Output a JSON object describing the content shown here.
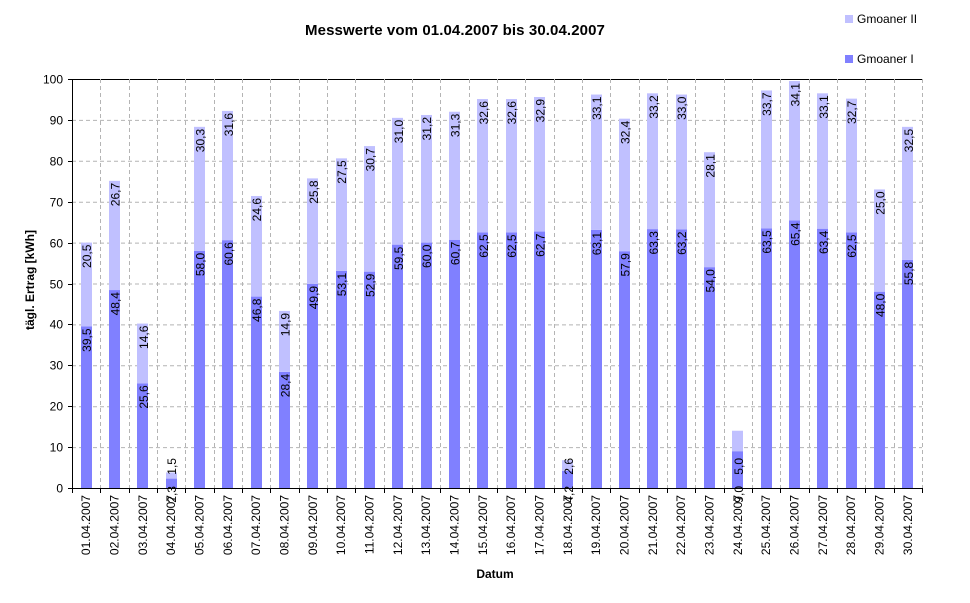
{
  "chart_data": {
    "type": "bar",
    "stacked": true,
    "title": "Messwerte vom 01.04.2007 bis 30.04.2007",
    "xlabel": "Datum",
    "ylabel": "tägl. Ertrag [kWh]",
    "ylim": [
      0,
      100
    ],
    "yticks": [
      0,
      10,
      20,
      30,
      40,
      50,
      60,
      70,
      80,
      90,
      100
    ],
    "grid": true,
    "legend_position": "top-right",
    "categories": [
      "01.04.2007",
      "02.04.2007",
      "03.04.2007",
      "04.04.2007",
      "05.04.2007",
      "06.04.2007",
      "07.04.2007",
      "08.04.2007",
      "09.04.2007",
      "10.04.2007",
      "11.04.2007",
      "12.04.2007",
      "13.04.2007",
      "14.04.2007",
      "15.04.2007",
      "16.04.2007",
      "17.04.2007",
      "18.04.2007",
      "19.04.2007",
      "20.04.2007",
      "21.04.2007",
      "22.04.2007",
      "23.04.2007",
      "24.04.2007",
      "25.04.2007",
      "26.04.2007",
      "27.04.2007",
      "28.04.2007",
      "29.04.2007",
      "30.04.2007"
    ],
    "series": [
      {
        "name": "Gmoaner I",
        "color": "#8080ff",
        "values": [
          39.5,
          48.4,
          25.6,
          2.3,
          58.0,
          60.6,
          46.8,
          28.4,
          49.9,
          53.1,
          52.9,
          59.5,
          60.0,
          60.7,
          62.5,
          62.5,
          62.7,
          4.2,
          63.1,
          57.9,
          63.3,
          63.2,
          54.0,
          9.0,
          63.5,
          65.4,
          63.4,
          62.5,
          48.0,
          55.8
        ],
        "labels": [
          "39,5",
          "48,4",
          "25,6",
          "2,3",
          "58,0",
          "60,6",
          "46,8",
          "28,4",
          "49,9",
          "53,1",
          "52,9",
          "59,5",
          "60,0",
          "60,7",
          "62,5",
          "62,5",
          "62,7",
          "4,2",
          "63,1",
          "57,9",
          "63,3",
          "63,2",
          "54,0",
          "9,0",
          "63,5",
          "65,4",
          "63,4",
          "62,5",
          "48,0",
          "55,8"
        ]
      },
      {
        "name": "Gmoaner II",
        "color": "#c0c0ff",
        "values": [
          20.5,
          26.7,
          14.6,
          1.5,
          30.3,
          31.6,
          24.6,
          14.9,
          25.8,
          27.5,
          30.7,
          31.0,
          31.2,
          31.3,
          32.6,
          32.6,
          32.9,
          2.6,
          33.1,
          32.4,
          33.2,
          33.0,
          28.1,
          5.0,
          33.7,
          34.1,
          33.1,
          32.7,
          25.0,
          32.5
        ],
        "labels": [
          "20,5",
          "26,7",
          "14,6",
          "1,5",
          "30,3",
          "31,6",
          "24,6",
          "14,9",
          "25,8",
          "27,5",
          "30,7",
          "31,0",
          "31,2",
          "31,3",
          "32,6",
          "32,6",
          "32,9",
          "2,6",
          "33,1",
          "32,4",
          "33,2",
          "33,0",
          "28,1",
          "5,0",
          "33,7",
          "34,1",
          "33,1",
          "32,7",
          "25,0",
          "32,5"
        ]
      }
    ]
  },
  "legend": {
    "items": [
      {
        "label": "Gmoaner II",
        "color": "#c0c0ff"
      },
      {
        "label": "Gmoaner I",
        "color": "#8080ff"
      }
    ]
  }
}
